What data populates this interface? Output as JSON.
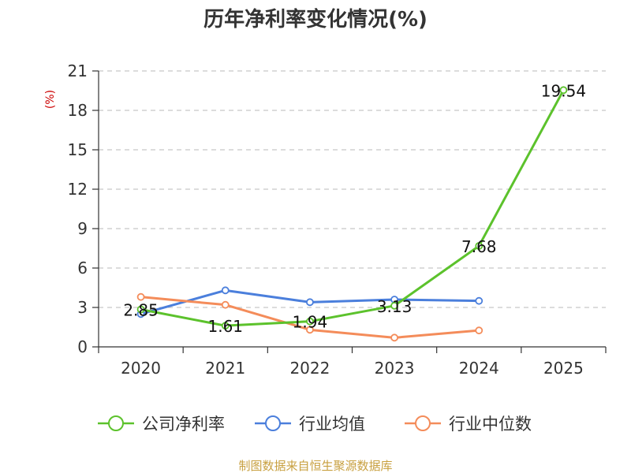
{
  "chart_data": {
    "type": "line",
    "title": "历年净利率变化情况(%)",
    "unit_label": "(%)",
    "categories": [
      "2020",
      "2021",
      "2022",
      "2023",
      "2024",
      "2025"
    ],
    "ylim": [
      0,
      21
    ],
    "yticks": [
      0,
      3,
      6,
      9,
      12,
      15,
      18,
      21
    ],
    "grid": true,
    "legend_position": "bottom",
    "series": [
      {
        "name": "公司净利率",
        "color": "#5cc22c",
        "values": [
          2.85,
          1.61,
          1.94,
          3.13,
          7.68,
          19.54
        ],
        "labels": [
          "2.85",
          "1.61",
          "1.94",
          "3.13",
          "7.68",
          "19.54"
        ]
      },
      {
        "name": "行业均值",
        "color": "#4b7fdc",
        "values": [
          2.5,
          4.3,
          3.4,
          3.6,
          3.5,
          null
        ]
      },
      {
        "name": "行业中位数",
        "color": "#f48c5a",
        "values": [
          3.8,
          3.2,
          1.3,
          0.7,
          1.25,
          null
        ]
      }
    ]
  },
  "source_text": "制图数据来自恒生聚源数据库"
}
